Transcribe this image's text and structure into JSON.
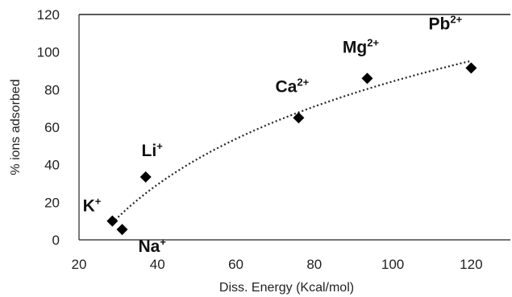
{
  "chart_data": {
    "type": "scatter",
    "title": "",
    "xlabel": "Diss. Energy (Kcal/mol)",
    "ylabel": "% ions adsorbed",
    "xlim": [
      20,
      130
    ],
    "ylim": [
      0,
      120
    ],
    "xticks": [
      20,
      40,
      60,
      80,
      100,
      120
    ],
    "yticks": [
      0,
      20,
      40,
      60,
      80,
      100,
      120
    ],
    "grid": false,
    "marker": "diamond",
    "marker_color": "#000000",
    "points": [
      {
        "ion": "K",
        "charge": "+",
        "x": 28.5,
        "y": 10
      },
      {
        "ion": "Na",
        "charge": "+",
        "x": 31,
        "y": 5.5
      },
      {
        "ion": "Li",
        "charge": "+",
        "x": 37,
        "y": 33.5
      },
      {
        "ion": "Ca",
        "charge": "2+",
        "x": 76,
        "y": 65
      },
      {
        "ion": "Mg",
        "charge": "2+",
        "x": 93.5,
        "y": 86
      },
      {
        "ion": "Pb",
        "charge": "2+",
        "x": 120,
        "y": 91.5
      }
    ],
    "trendline": {
      "style": "dotted",
      "type": "logarithmic",
      "x_range": [
        28.5,
        120
      ]
    }
  }
}
